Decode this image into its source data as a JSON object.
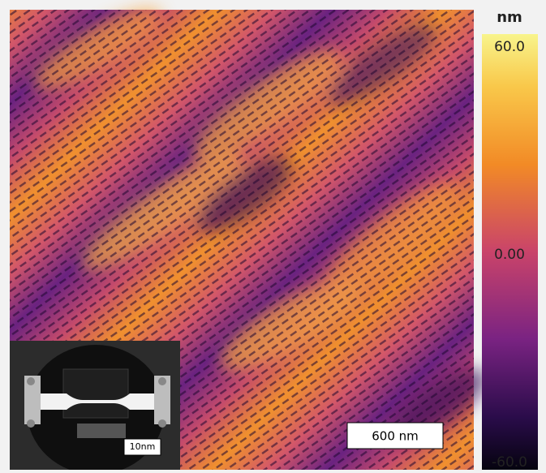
{
  "colorbar": {
    "unit": "nm",
    "ticks": [
      {
        "value": 60,
        "label": "60.0"
      },
      {
        "value": 0,
        "label": "0.00"
      },
      {
        "value": -60,
        "label": "-60.0"
      }
    ]
  },
  "scale_bar": {
    "label": "600 nm"
  },
  "inset": {
    "label": "10nm"
  }
}
